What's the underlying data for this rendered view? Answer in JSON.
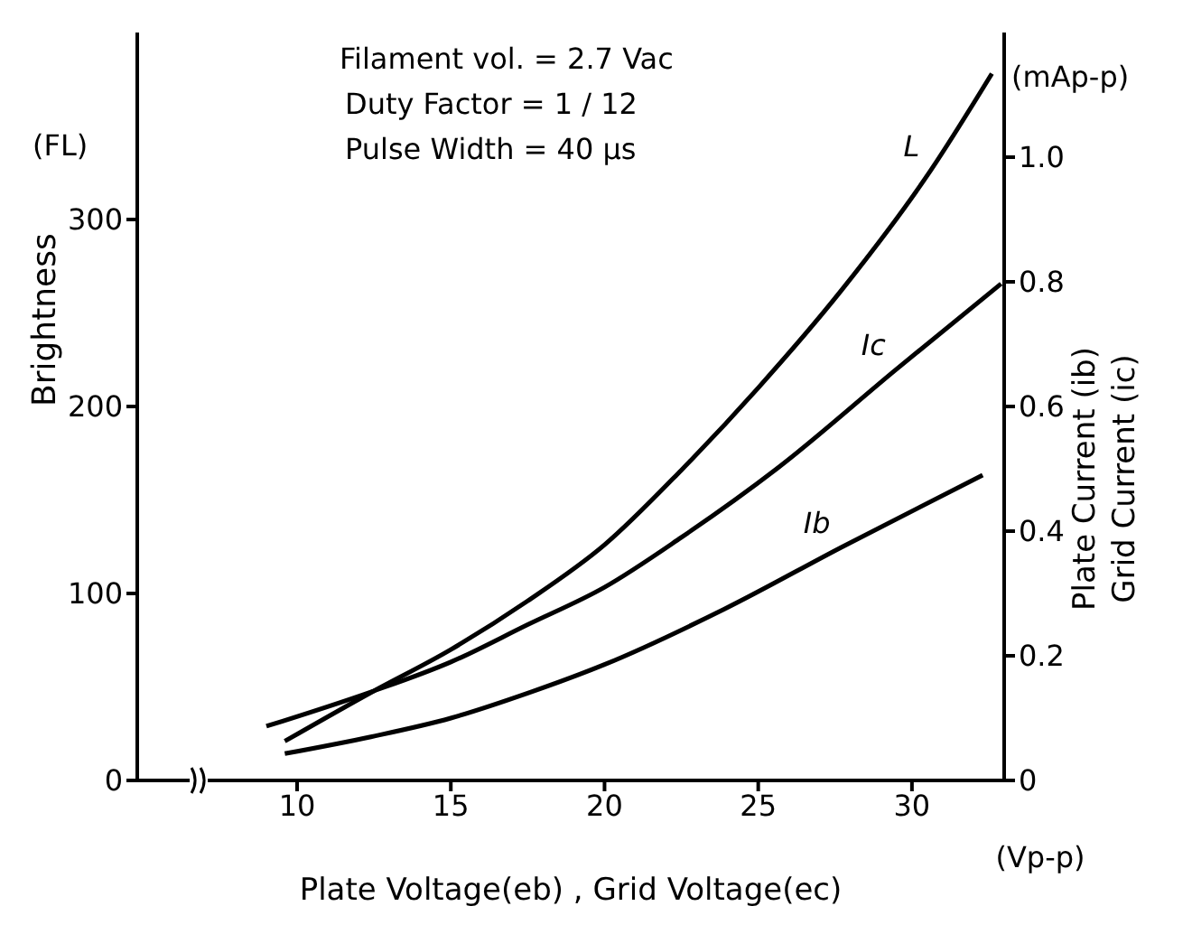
{
  "chart_data": {
    "type": "line",
    "xlabel": "Plate Voltage(eb) , Grid Voltage(ec)",
    "ylabel": "Brightness",
    "y2label": "Plate Current (ib)\nGrid Current (ic)",
    "annotations": [
      "Filament vol. = 2.7 Vac",
      "Duty Factor = 1 / 12",
      "Pulse Width = 40 μs",
      "(FL)",
      "(mAp-p)",
      "(Vp-p)"
    ],
    "xlim": [
      4.8,
      33
    ],
    "xticks": [
      10,
      15,
      20,
      25,
      30
    ],
    "ylim": [
      0,
      400
    ],
    "yticks": [
      0,
      100,
      200,
      300
    ],
    "y2lim": [
      0,
      1.2
    ],
    "y2ticks": [
      0,
      0.2,
      0.4,
      0.6,
      0.8,
      {
        "value": 1,
        "label": "1.0"
      }
    ],
    "marker": "none",
    "line_style": "solid",
    "series": [
      {
        "name": "L",
        "color": "#000000",
        "x": [
          9.6,
          12.4,
          15,
          17.5,
          20,
          22.5,
          25,
          27.7,
          30.6,
          32.6
        ],
        "values": [
          21,
          47,
          70,
          96,
          126,
          166,
          210,
          262,
          326,
          378
        ]
      },
      {
        "name": "Ic",
        "color": "#000000",
        "axis": "y2",
        "x": [
          9.0,
          12.4,
          15,
          17.5,
          20,
          22.5,
          25.6,
          29.5,
          32.9
        ],
        "values": [
          0.087,
          0.142,
          0.19,
          0.25,
          0.31,
          0.39,
          0.5,
          0.66,
          0.797
        ]
      },
      {
        "name": "Ib",
        "color": "#000000",
        "axis": "y2",
        "x": [
          9.6,
          12.4,
          15,
          17.5,
          20,
          23.9,
          27.7,
          32.3
        ],
        "values": [
          0.043,
          0.07,
          0.1,
          0.14,
          0.186,
          0.275,
          0.374,
          0.49
        ]
      }
    ]
  }
}
